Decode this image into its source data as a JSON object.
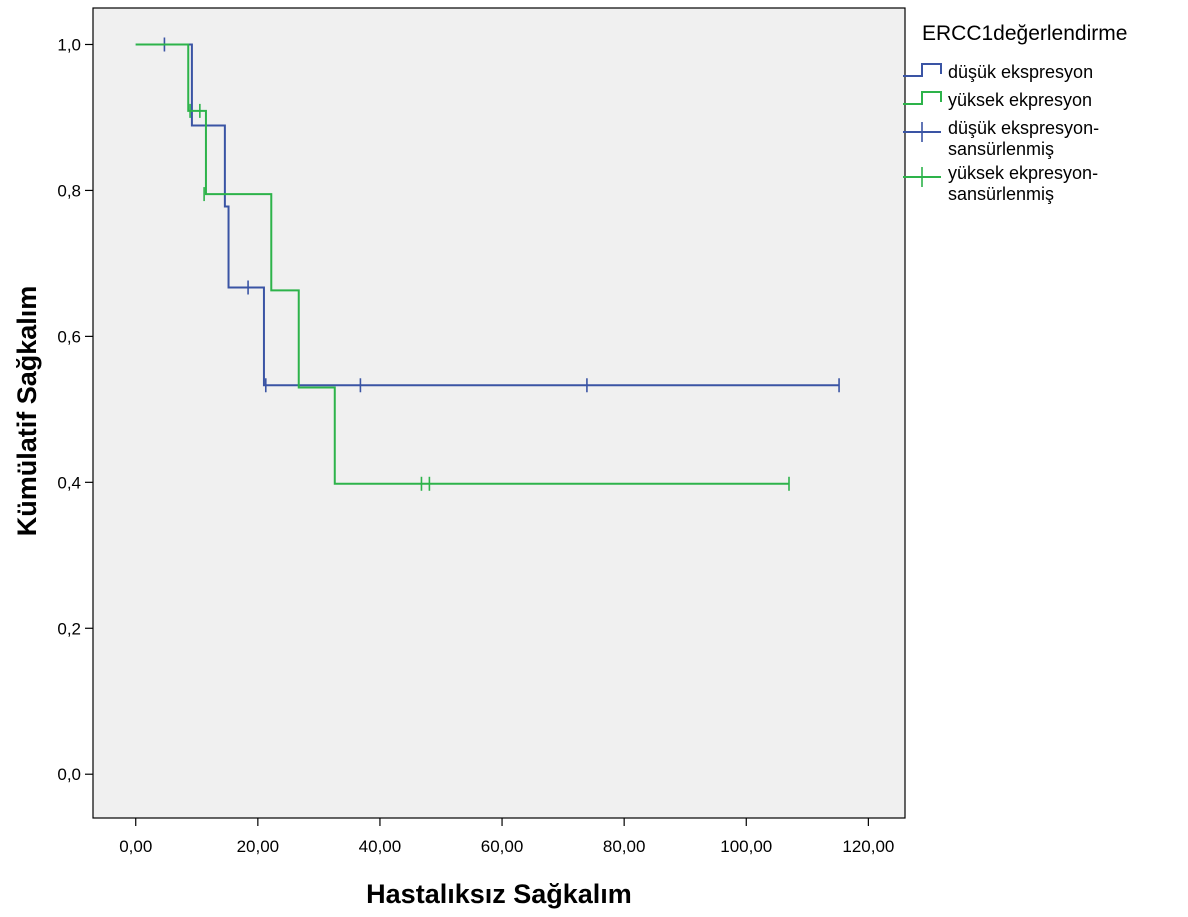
{
  "chart_data": {
    "type": "line",
    "step": true,
    "xlabel": "Hastalıksız Sağkalım",
    "ylabel": "Kümülatif Sağkalım",
    "xlim": [
      -7,
      126
    ],
    "ylim": [
      -0.06,
      1.05
    ],
    "x_ticks": [
      0,
      20,
      40,
      60,
      80,
      100,
      120
    ],
    "x_tick_labels": [
      "0,00",
      "20,00",
      "40,00",
      "60,00",
      "80,00",
      "100,00",
      "120,00"
    ],
    "y_ticks": [
      0,
      0.2,
      0.4,
      0.6,
      0.8,
      1.0
    ],
    "y_tick_labels": [
      "0,0",
      "0,2",
      "0,4",
      "0,6",
      "0,8",
      "1,0"
    ],
    "grid": false,
    "plot_background": "#f0f0f0",
    "legend": {
      "title": "ERCC1değerlendirme",
      "placement": "right",
      "entries": [
        {
          "lines": [
            "düşük ekspresyon"
          ],
          "color": "#3a54a4",
          "kind": "step"
        },
        {
          "lines": [
            "yüksek ekpresyon"
          ],
          "color": "#2db34a",
          "kind": "step"
        },
        {
          "lines": [
            "düşük ekspresyon-",
            "sansürlenmiş"
          ],
          "color": "#3a54a4",
          "kind": "censor"
        },
        {
          "lines": [
            "yüksek ekpresyon-",
            "sansürlenmiş"
          ],
          "color": "#2db34a",
          "kind": "censor"
        }
      ]
    },
    "series": [
      {
        "name": "düşük ekspresyon",
        "color": "#3a54a4",
        "steps": [
          [
            0,
            1.0
          ],
          [
            9.2,
            0.889
          ],
          [
            14.6,
            0.778
          ],
          [
            15.2,
            0.667
          ],
          [
            21.0,
            0.533
          ],
          [
            115.2,
            0.533
          ]
        ],
        "censored": [
          [
            4.7,
            1.0
          ],
          [
            18.4,
            0.667
          ],
          [
            21.3,
            0.533
          ],
          [
            36.8,
            0.533
          ],
          [
            73.9,
            0.533
          ],
          [
            115.2,
            0.533
          ]
        ]
      },
      {
        "name": "yüksek ekpresyon",
        "color": "#2db34a",
        "steps": [
          [
            0,
            1.0
          ],
          [
            8.6,
            0.909
          ],
          [
            11.5,
            0.795
          ],
          [
            22.2,
            0.663
          ],
          [
            26.7,
            0.53
          ],
          [
            32.6,
            0.398
          ],
          [
            107.0,
            0.398
          ]
        ],
        "censored": [
          [
            8.9,
            0.909
          ],
          [
            10.5,
            0.909
          ],
          [
            11.2,
            0.795
          ],
          [
            46.8,
            0.398
          ],
          [
            48.1,
            0.398
          ],
          [
            107.0,
            0.398
          ]
        ]
      }
    ]
  }
}
